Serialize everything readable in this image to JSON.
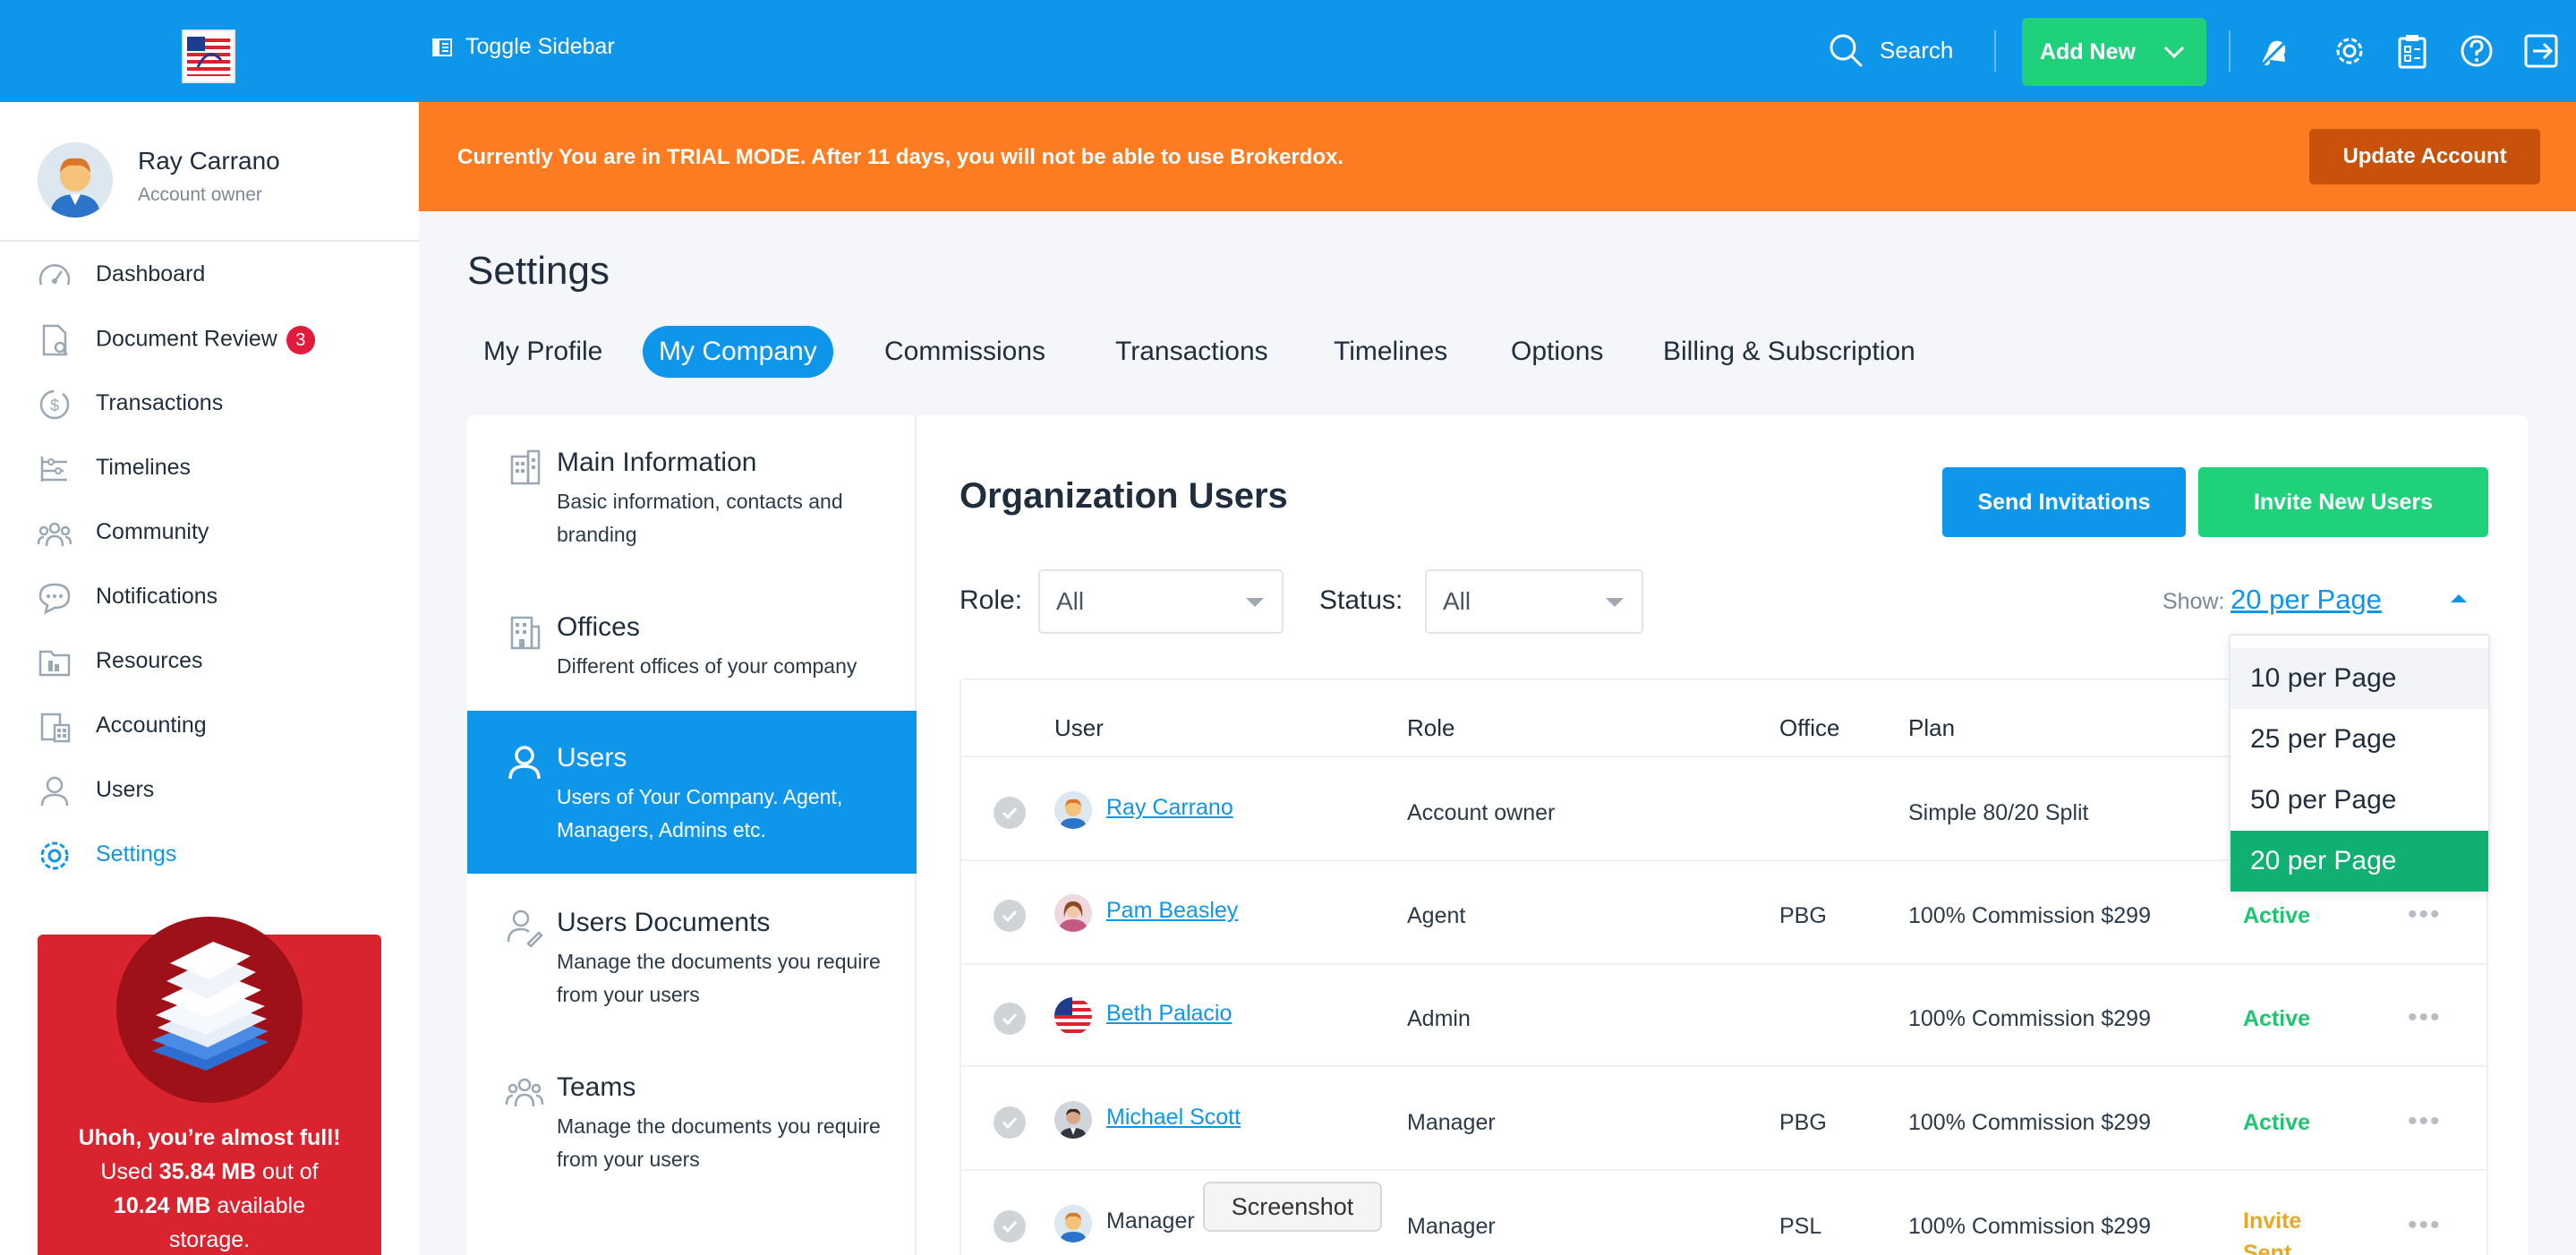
{
  "topbar": {
    "toggle_label": "Toggle Sidebar",
    "search_label": "Search",
    "add_new_label": "Add New",
    "icons": [
      "bell-icon",
      "gear-icon",
      "clipboard-icon",
      "help-icon",
      "logout-icon"
    ]
  },
  "profile": {
    "name": "Ray Carrano",
    "role": "Account owner"
  },
  "sidebar": {
    "items": [
      {
        "label": "Dashboard",
        "icon": "speedometer-icon"
      },
      {
        "label": "Document Review",
        "icon": "document-review-icon",
        "badge": "3"
      },
      {
        "label": "Transactions",
        "icon": "dollar-icon"
      },
      {
        "label": "Timelines",
        "icon": "timeline-icon"
      },
      {
        "label": "Community",
        "icon": "community-icon"
      },
      {
        "label": "Notifications",
        "icon": "chat-icon"
      },
      {
        "label": "Resources",
        "icon": "folder-icon"
      },
      {
        "label": "Accounting",
        "icon": "calculator-icon"
      },
      {
        "label": "Users",
        "icon": "user-icon"
      },
      {
        "label": "Settings",
        "icon": "gear-icon",
        "active": true
      }
    ]
  },
  "storage": {
    "line1": "Uhoh, you’re almost full!",
    "used_prefix": "Used ",
    "used": "35.84 MB",
    "used_mid": " out of",
    "available": "10.24 MB",
    "available_suffix": " available",
    "line4": "storage."
  },
  "trial": {
    "message": "Currently You are in TRIAL MODE. After 11 days, you will not be able to use Brokerdox.",
    "button": "Update Account"
  },
  "settings": {
    "title": "Settings",
    "tabs": [
      {
        "label": "My Profile"
      },
      {
        "label": "My Company",
        "active": true
      },
      {
        "label": "Commissions"
      },
      {
        "label": "Transactions"
      },
      {
        "label": "Timelines"
      },
      {
        "label": "Options"
      },
      {
        "label": "Billing & Subscription"
      }
    ]
  },
  "company_nav": [
    {
      "title": "Main Information",
      "desc": "Basic information, contacts and branding",
      "icon": "building-icon"
    },
    {
      "title": "Offices",
      "desc": "Different offices of your company",
      "icon": "office-icon"
    },
    {
      "title": "Users",
      "desc": "Users of Your Company. Agent, Managers, Admins etc.",
      "icon": "user-icon",
      "active": true
    },
    {
      "title": "Users Documents",
      "desc": "Manage the documents you require from your users",
      "icon": "user-document-icon"
    },
    {
      "title": "Teams",
      "desc": "Manage the documents you require from your users",
      "icon": "team-icon"
    }
  ],
  "org": {
    "title": "Organization Users",
    "send_invitations": "Send Invitations",
    "invite_new_users": "Invite New Users",
    "role_label": "Role:",
    "role_value": "All",
    "status_label": "Status:",
    "status_value": "All",
    "show_label": "Show:",
    "show_value": "20 per Page",
    "columns": {
      "user": "User",
      "role": "Role",
      "office": "Office",
      "plan": "Plan"
    },
    "rows": [
      {
        "user": "Ray Carrano",
        "role": "Account owner",
        "office": "",
        "plan": "Simple 80/20 Split",
        "status": ""
      },
      {
        "user": "Pam Beasley",
        "role": "Agent",
        "office": "PBG",
        "plan": "100% Commission $299",
        "status": "Active"
      },
      {
        "user": "Beth Palacio",
        "role": "Admin",
        "office": "",
        "plan": "100% Commission $299",
        "status": "Active"
      },
      {
        "user": "Michael Scott",
        "role": "Manager",
        "office": "PBG",
        "plan": "100% Commission $299",
        "status": "Active"
      },
      {
        "user": "Manager",
        "role": "Manager",
        "office": "PSL",
        "plan": "100% Commission $299",
        "status_line1": "Invite",
        "status_line2": "Sent"
      }
    ]
  },
  "per_page_options": [
    "10 per Page",
    "25 per Page",
    "50 per Page",
    "20 per Page"
  ],
  "tooltip": "Screenshot",
  "colors": {
    "primary": "#0e97ea",
    "success": "#1fd17b",
    "trial": "#fd7c22",
    "selected_option": "#0fb072"
  }
}
